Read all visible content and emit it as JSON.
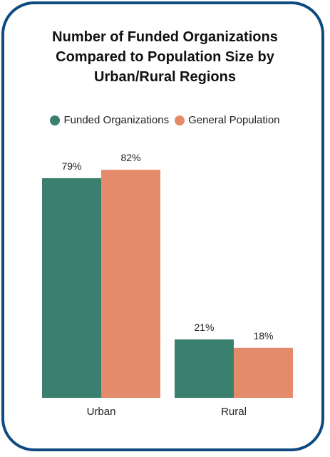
{
  "title_lines": [
    "Number of Funded Organizations",
    "Compared to Population Size by",
    "Urban/Rural Regions"
  ],
  "colors": {
    "border": "#0e4a80",
    "funded": "#3b7f6f",
    "population": "#e48b6c"
  },
  "legend": [
    {
      "label": "Funded Organizations",
      "color": "#3b7f6f"
    },
    {
      "label": "General Population",
      "color": "#e48b6c"
    }
  ],
  "chart_data": {
    "type": "bar",
    "title": "Number of Funded Organizations Compared to Population Size by Urban/Rural Regions",
    "categories": [
      "Urban",
      "Rural"
    ],
    "series": [
      {
        "name": "Funded Organizations",
        "values": [
          79,
          21
        ],
        "labels": [
          "79%",
          "21%"
        ],
        "color": "#3b7f6f"
      },
      {
        "name": "General Population",
        "values": [
          82,
          18
        ],
        "labels": [
          "82%",
          "18%"
        ],
        "color": "#e48b6c"
      }
    ],
    "xlabel": "",
    "ylabel": "",
    "ylim": [
      0,
      100
    ],
    "grid": false,
    "legend_position": "top"
  }
}
